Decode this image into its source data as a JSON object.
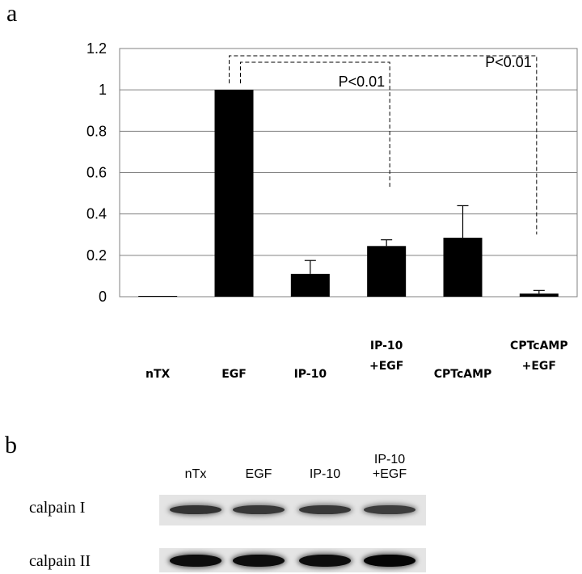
{
  "panel_a_label": "a",
  "panel_b_label": "b",
  "chart_data": {
    "type": "bar",
    "title": "",
    "xlabel": "",
    "ylabel": "",
    "ylim": [
      0,
      1.2
    ],
    "yticks": [
      "0",
      "0.2",
      "0.4",
      "0.6",
      "0.8",
      "1",
      "1.2"
    ],
    "grid": true,
    "categories": [
      [
        "nTX"
      ],
      [
        "EGF"
      ],
      [
        "IP-10"
      ],
      [
        "IP-10",
        "+EGF"
      ],
      [
        "CPTcAMP"
      ],
      [
        "CPTcAMP",
        "+EGF"
      ]
    ],
    "values": [
      0.0,
      1.0,
      0.11,
      0.245,
      0.285,
      0.015
    ],
    "error_plus": [
      0.0,
      0.0,
      0.065,
      0.03,
      0.155,
      0.015
    ],
    "bar_color": "#000000",
    "annotations": [
      {
        "text": "P<0.01",
        "from_index": 1,
        "to_index": 3
      },
      {
        "text": "P<0.01",
        "from_index": 1,
        "to_index": 5
      }
    ]
  },
  "blot": {
    "lanes": [
      [
        "nTx"
      ],
      [
        "EGF"
      ],
      [
        "IP-10"
      ],
      [
        "IP-10",
        "+EGF"
      ]
    ],
    "rows": [
      {
        "label": "calpain I",
        "intensity": [
          0.8,
          0.78,
          0.78,
          0.76
        ]
      },
      {
        "label": "calpain II",
        "intensity": [
          0.95,
          0.95,
          0.95,
          0.98
        ]
      }
    ]
  }
}
